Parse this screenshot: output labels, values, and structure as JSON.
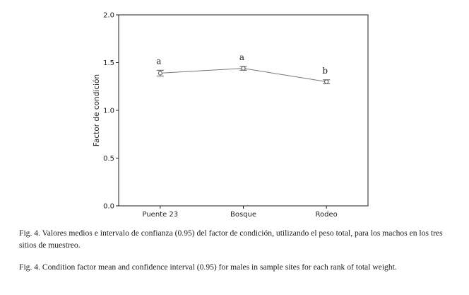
{
  "chart_data": {
    "type": "line",
    "ylabel": "Factor de condición",
    "xlabel": "",
    "categories": [
      "Puente 23",
      "Bosque",
      "Rodeo"
    ],
    "series": [
      {
        "values": [
          1.39,
          1.44,
          1.3
        ],
        "ci_lower": [
          1.36,
          1.42,
          1.28
        ],
        "ci_upper": [
          1.42,
          1.46,
          1.32
        ]
      }
    ],
    "group_letters": [
      "a",
      "a",
      "b"
    ],
    "ylim": [
      0.0,
      2.0
    ],
    "yticks": [
      "0.0",
      "0.5",
      "1.0",
      "1.5",
      "2.0"
    ],
    "grid": false,
    "colors": {
      "line": "#777777",
      "axis": "#222222",
      "marker": "#555555"
    }
  },
  "captions": {
    "spanish": "Fig. 4. Valores medios e intervalo de confianza (0.95) del factor de condición,  utilizando el peso total, para los machos en los tres sitios de muestreo.",
    "english": "Fig. 4. Condition factor mean and confidence interval (0.95) for males in sample sites for each rank of total weight."
  }
}
